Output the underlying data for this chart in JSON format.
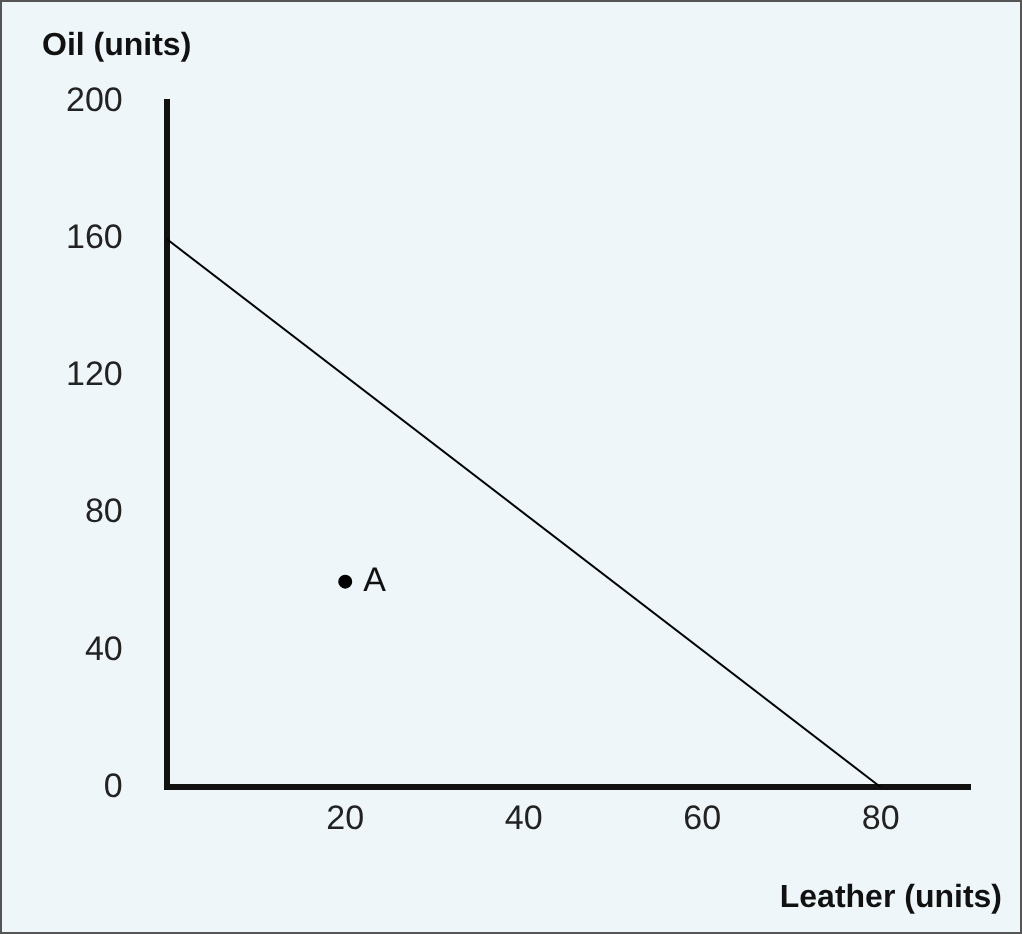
{
  "chart_data": {
    "type": "line",
    "xlabel": "Leather (units)",
    "ylabel": "Oil (units)",
    "xlim": [
      0,
      90
    ],
    "ylim": [
      0,
      200
    ],
    "xticks": [
      20,
      40,
      60,
      80
    ],
    "yticks": [
      0,
      40,
      80,
      120,
      160,
      200
    ],
    "grid": false,
    "legend": false,
    "marker": "none",
    "line_style": "solid",
    "series": [
      {
        "x": [
          0,
          80
        ],
        "values": [
          160,
          0
        ],
        "color": "#000000"
      },
      {
        "type": "scatter",
        "x": [
          20
        ],
        "values": [
          60
        ],
        "color": "#000000",
        "marker": "circle"
      }
    ],
    "annotations": [
      {
        "text": "A",
        "x": 20,
        "y": 60
      }
    ]
  }
}
